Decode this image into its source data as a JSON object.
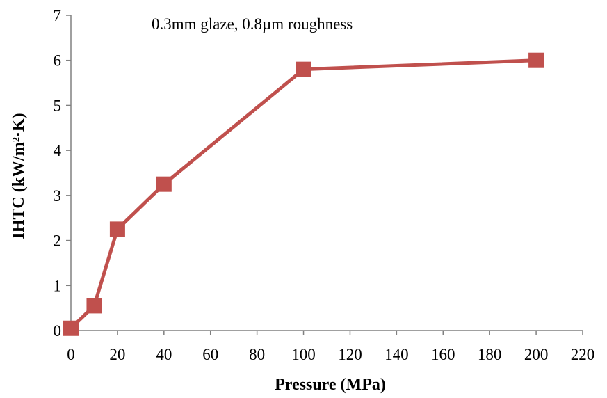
{
  "chart_data": {
    "type": "line",
    "title": "",
    "annotation": "0.3mm glaze, 0.8µm roughness",
    "xlabel": "Pressure (MPa)",
    "ylabel": "IHTC (kW/m²·K)",
    "xlim": [
      0,
      220
    ],
    "ylim": [
      0,
      7
    ],
    "xticks": [
      0,
      20,
      40,
      60,
      80,
      100,
      120,
      140,
      160,
      180,
      200,
      220
    ],
    "yticks": [
      0,
      1,
      2,
      3,
      4,
      5,
      6,
      7
    ],
    "grid": false,
    "legend": "none",
    "colors": {
      "series": "#c0504d",
      "axis": "#808080"
    },
    "series": [
      {
        "x": [
          0,
          10,
          20,
          40,
          100,
          200
        ],
        "y": [
          0.05,
          0.55,
          2.25,
          3.25,
          5.8,
          6.0
        ],
        "marker": "square"
      }
    ]
  }
}
